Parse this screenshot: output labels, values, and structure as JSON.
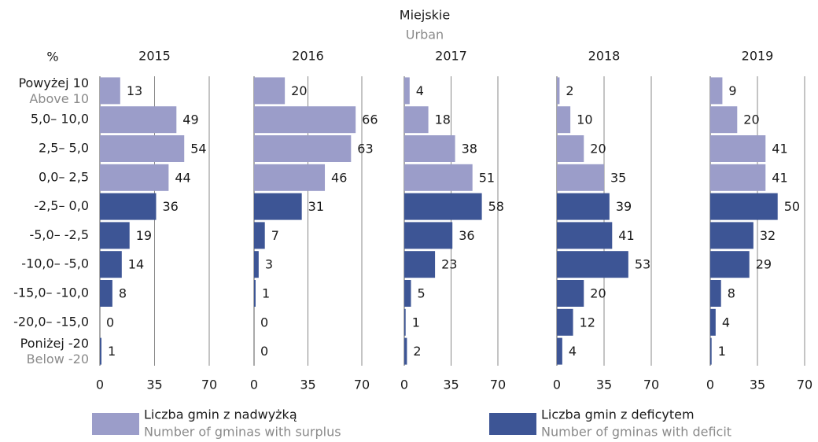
{
  "chart_data": {
    "type": "bar",
    "title": "Miejskie",
    "subtitle": "Urban",
    "y_label": "%",
    "categories": [
      "Powyżej 10",
      "5,0– 10,0",
      "2,5– 5,0",
      "0,0– 2,5",
      "-2,5– 0,0",
      "-5,0– -2,5",
      "-10,0– -5,0",
      "-15,0– -10,0",
      "-20,0– -15,0",
      "Poniżej -20"
    ],
    "categories_en": [
      "Above 10",
      null,
      null,
      null,
      null,
      null,
      null,
      null,
      null,
      "Below -20"
    ],
    "series": [
      {
        "name": "Liczba gmin z nadwyżką",
        "name_en": "Number of gminas with surplus",
        "color": "#9b9dc9"
      },
      {
        "name": "Liczba gmin z deficytem",
        "name_en": "Number of gminas with deficit",
        "color": "#3d5595"
      }
    ],
    "xlim": [
      0,
      70
    ],
    "xticks": [
      0,
      35,
      70
    ],
    "grid": true,
    "panels": [
      {
        "title": "2015",
        "values": [
          [
            13,
            49,
            54,
            44,
            null,
            null,
            null,
            null,
            null,
            null
          ],
          [
            null,
            null,
            null,
            null,
            36,
            19,
            14,
            8,
            0,
            1
          ]
        ]
      },
      {
        "title": "2016",
        "values": [
          [
            20,
            66,
            63,
            46,
            null,
            null,
            null,
            null,
            null,
            null
          ],
          [
            null,
            null,
            null,
            null,
            31,
            7,
            3,
            1,
            0,
            0
          ]
        ]
      },
      {
        "title": "2017",
        "values": [
          [
            4,
            18,
            38,
            51,
            null,
            null,
            null,
            null,
            null,
            null
          ],
          [
            null,
            null,
            null,
            null,
            58,
            36,
            23,
            5,
            1,
            2
          ]
        ]
      },
      {
        "title": "2018",
        "values": [
          [
            2,
            10,
            20,
            35,
            null,
            null,
            null,
            null,
            null,
            null
          ],
          [
            null,
            null,
            null,
            null,
            39,
            41,
            53,
            20,
            12,
            4
          ]
        ]
      },
      {
        "title": "2019",
        "values": [
          [
            9,
            20,
            41,
            41,
            null,
            null,
            null,
            null,
            null,
            null
          ],
          [
            null,
            null,
            null,
            null,
            50,
            32,
            29,
            8,
            4,
            1
          ]
        ]
      }
    ]
  }
}
